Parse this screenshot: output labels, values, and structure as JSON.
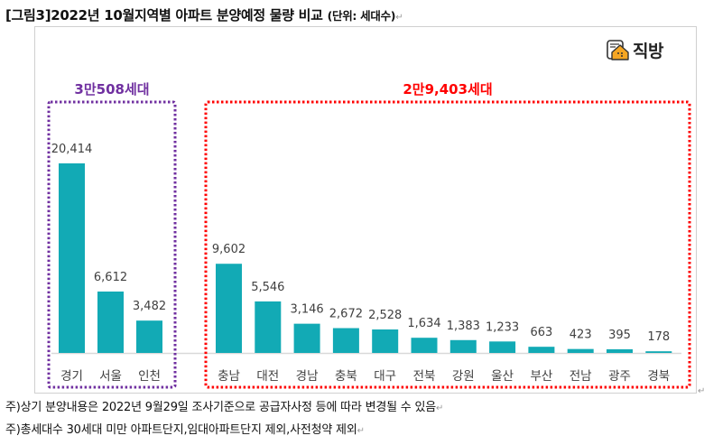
{
  "document": {
    "title_main": "[그림3]2022년 10월지역별 아파트 분양예정 물량 비교 ",
    "title_unit": "(단위: 세대수)",
    "paragraph_mark": "↵",
    "logo_text": "직방",
    "notes": [
      "주)상기 분양내용은 2022년 9월29일 조사기준으로 공급자사정 등에 따라 변경될 수 있음",
      "주)총세대수 30세대 미만 아파트단지,임대아파트단지 제외,사전청약 제외"
    ]
  },
  "colors": {
    "bar": "#12aab5",
    "group1": "#7030a0",
    "group2": "#ff0000",
    "baseline": "#d9d9d9",
    "text": "#404040"
  },
  "chart_data": {
    "type": "bar",
    "title": "2022년 10월지역별 아파트 분양예정 물량 비교",
    "xlabel": "",
    "ylabel": "",
    "unit": "세대수",
    "ylim": [
      0,
      21000
    ],
    "grid": false,
    "categories": [
      "경기",
      "서울",
      "인천",
      "충남",
      "대전",
      "경남",
      "충북",
      "대구",
      "전북",
      "강원",
      "울산",
      "부산",
      "전남",
      "광주",
      "경북"
    ],
    "values": [
      20414,
      6612,
      3482,
      9602,
      5546,
      3146,
      2672,
      2528,
      1634,
      1383,
      1233,
      663,
      423,
      395,
      178
    ],
    "data_labels": [
      "20,414",
      "6,612",
      "3,482",
      "9,602",
      "5,546",
      "3,146",
      "2,672",
      "2,528",
      "1,634",
      "1,383",
      "1,233",
      "663",
      "423",
      "395",
      "178"
    ],
    "groups": [
      {
        "label": "3만508세대",
        "range": [
          0,
          2
        ],
        "style": "dotted",
        "color_key": "group1"
      },
      {
        "label": "2만9,403세대",
        "range": [
          3,
          14
        ],
        "style": "dotted",
        "color_key": "group2"
      }
    ]
  }
}
